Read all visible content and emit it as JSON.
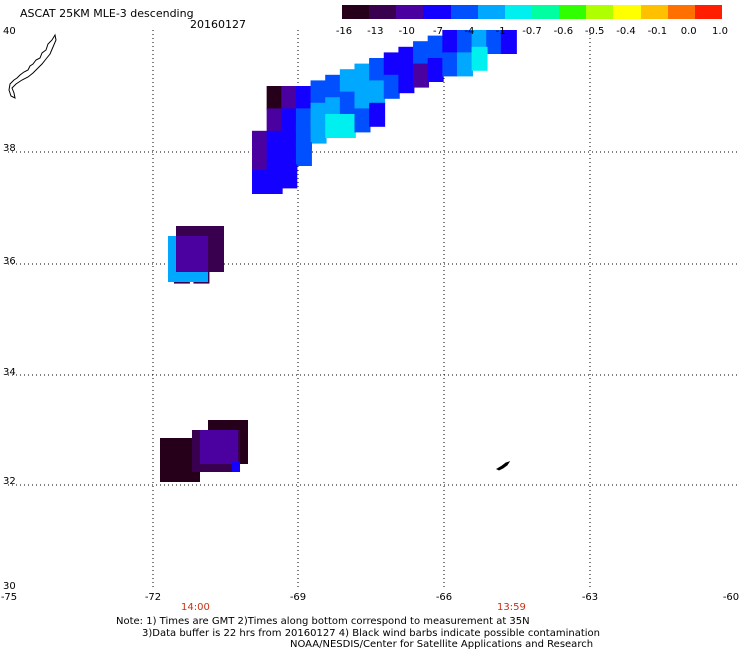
{
  "header": {
    "title": "ASCAT 25KM MLE-3 descending",
    "date": "20160127"
  },
  "colorbar": {
    "colors": [
      "#26001a",
      "#3a0050",
      "#4b00a0",
      "#1400ff",
      "#0050ff",
      "#00a8ff",
      "#00f0f0",
      "#00ffa0",
      "#30ff00",
      "#b0ff00",
      "#ffff00",
      "#ffc000",
      "#ff7000",
      "#ff1e00"
    ],
    "labels": [
      "-16",
      "-13",
      "-10",
      "-7",
      "-4",
      "-1",
      "-0.7",
      "-0.6",
      "-0.5",
      "-0.4",
      "-0.1",
      "0.0",
      "1.0"
    ]
  },
  "axes": {
    "lat_labels": [
      "40",
      "38",
      "36",
      "34",
      "32",
      "30"
    ],
    "lon_labels": [
      "-75",
      "-72",
      "-69",
      "-66",
      "-63",
      "-60"
    ]
  },
  "times": {
    "left": "14:00",
    "right": "13:59"
  },
  "notes": {
    "line1": "Note: 1) Times are GMT 2)Times along bottom correspond to measurement at 35N",
    "line2": "3)Data buffer is 22 hrs from 20160127 4) Black wind barbs indicate possible contamination",
    "line3": "NOAA/NESDIS/Center for Satellite Applications and Research"
  },
  "map_data": {
    "lat_range": [
      30,
      40
    ],
    "lon_range": [
      -75,
      -60
    ],
    "swath_cells": [
      {
        "lon": -69.7,
        "lat": 39.0,
        "color": "#26001a"
      },
      {
        "lon": -69.4,
        "lat": 39.0,
        "color": "#4b00a0"
      },
      {
        "lon": -69.1,
        "lat": 39.0,
        "color": "#1400ff"
      },
      {
        "lon": -68.8,
        "lat": 39.1,
        "color": "#0050ff"
      },
      {
        "lon": -68.5,
        "lat": 39.2,
        "color": "#0050ff"
      },
      {
        "lon": -68.2,
        "lat": 39.3,
        "color": "#00a8ff"
      },
      {
        "lon": -67.9,
        "lat": 39.4,
        "color": "#00a8ff"
      },
      {
        "lon": -67.6,
        "lat": 39.5,
        "color": "#0050ff"
      },
      {
        "lon": -67.3,
        "lat": 39.6,
        "color": "#1400ff"
      },
      {
        "lon": -67.0,
        "lat": 39.7,
        "color": "#1400ff"
      },
      {
        "lon": -66.7,
        "lat": 39.8,
        "color": "#0050ff"
      },
      {
        "lon": -66.4,
        "lat": 39.9,
        "color": "#0050ff"
      },
      {
        "lon": -66.1,
        "lat": 40.0,
        "color": "#1400ff"
      },
      {
        "lon": -65.8,
        "lat": 40.0,
        "color": "#0050ff"
      },
      {
        "lon": -65.5,
        "lat": 40.0,
        "color": "#00a8ff"
      },
      {
        "lon": -65.2,
        "lat": 40.0,
        "color": "#0050ff"
      },
      {
        "lon": -64.9,
        "lat": 40.0,
        "color": "#1400ff"
      },
      {
        "lon": -69.7,
        "lat": 38.6,
        "color": "#4b00a0"
      },
      {
        "lon": -69.4,
        "lat": 38.6,
        "color": "#1400ff"
      },
      {
        "lon": -69.1,
        "lat": 38.6,
        "color": "#0050ff"
      },
      {
        "lon": -68.8,
        "lat": 38.7,
        "color": "#00a8ff"
      },
      {
        "lon": -68.5,
        "lat": 38.8,
        "color": "#00a8ff"
      },
      {
        "lon": -68.2,
        "lat": 38.9,
        "color": "#0050ff"
      },
      {
        "lon": -67.9,
        "lat": 39.0,
        "color": "#00a8ff"
      },
      {
        "lon": -67.6,
        "lat": 39.1,
        "color": "#00a8ff"
      },
      {
        "lon": -67.3,
        "lat": 39.2,
        "color": "#0050ff"
      },
      {
        "lon": -67.0,
        "lat": 39.3,
        "color": "#1400ff"
      },
      {
        "lon": -66.7,
        "lat": 39.4,
        "color": "#4b00a0"
      },
      {
        "lon": -66.4,
        "lat": 39.5,
        "color": "#1400ff"
      },
      {
        "lon": -66.1,
        "lat": 39.6,
        "color": "#0050ff"
      },
      {
        "lon": -65.8,
        "lat": 39.6,
        "color": "#00a8ff"
      },
      {
        "lon": -65.5,
        "lat": 39.7,
        "color": "#00f0f0"
      },
      {
        "lon": -70.0,
        "lat": 38.2,
        "color": "#4b00a0"
      },
      {
        "lon": -69.7,
        "lat": 38.2,
        "color": "#1400ff"
      },
      {
        "lon": -69.4,
        "lat": 38.2,
        "color": "#1400ff"
      },
      {
        "lon": -69.1,
        "lat": 38.3,
        "color": "#0050ff"
      },
      {
        "lon": -68.8,
        "lat": 38.4,
        "color": "#00a8ff"
      },
      {
        "lon": -68.5,
        "lat": 38.5,
        "color": "#00f0f0"
      },
      {
        "lon": -68.2,
        "lat": 38.5,
        "color": "#00f0f0"
      },
      {
        "lon": -67.9,
        "lat": 38.6,
        "color": "#0050ff"
      },
      {
        "lon": -67.6,
        "lat": 38.7,
        "color": "#1400ff"
      },
      {
        "lon": -70.0,
        "lat": 37.8,
        "color": "#4b00a0"
      },
      {
        "lon": -69.7,
        "lat": 37.8,
        "color": "#1400ff"
      },
      {
        "lon": -69.4,
        "lat": 37.9,
        "color": "#1400ff"
      },
      {
        "lon": -69.1,
        "lat": 38.0,
        "color": "#0050ff"
      },
      {
        "lon": -70.0,
        "lat": 37.5,
        "color": "#1400ff"
      },
      {
        "lon": -69.7,
        "lat": 37.5,
        "color": "#1400ff"
      },
      {
        "lon": -69.4,
        "lat": 37.6,
        "color": "#1400ff"
      },
      {
        "lon": -71.6,
        "lat": 36.2,
        "color": "#3a0050"
      },
      {
        "lon": -71.2,
        "lat": 36.2,
        "color": "#3a0050"
      },
      {
        "lon": -71.6,
        "lat": 35.9,
        "color": "#3a0050"
      },
      {
        "lon": -71.2,
        "lat": 35.9,
        "color": "#3a0050"
      },
      {
        "lon": -71.4,
        "lat": 32.7,
        "color": "#26001a"
      },
      {
        "lon": -70.6,
        "lat": 32.9,
        "color": "#3a0050"
      },
      {
        "lon": -70.8,
        "lat": 32.6,
        "color": "#4b00a0"
      }
    ]
  }
}
